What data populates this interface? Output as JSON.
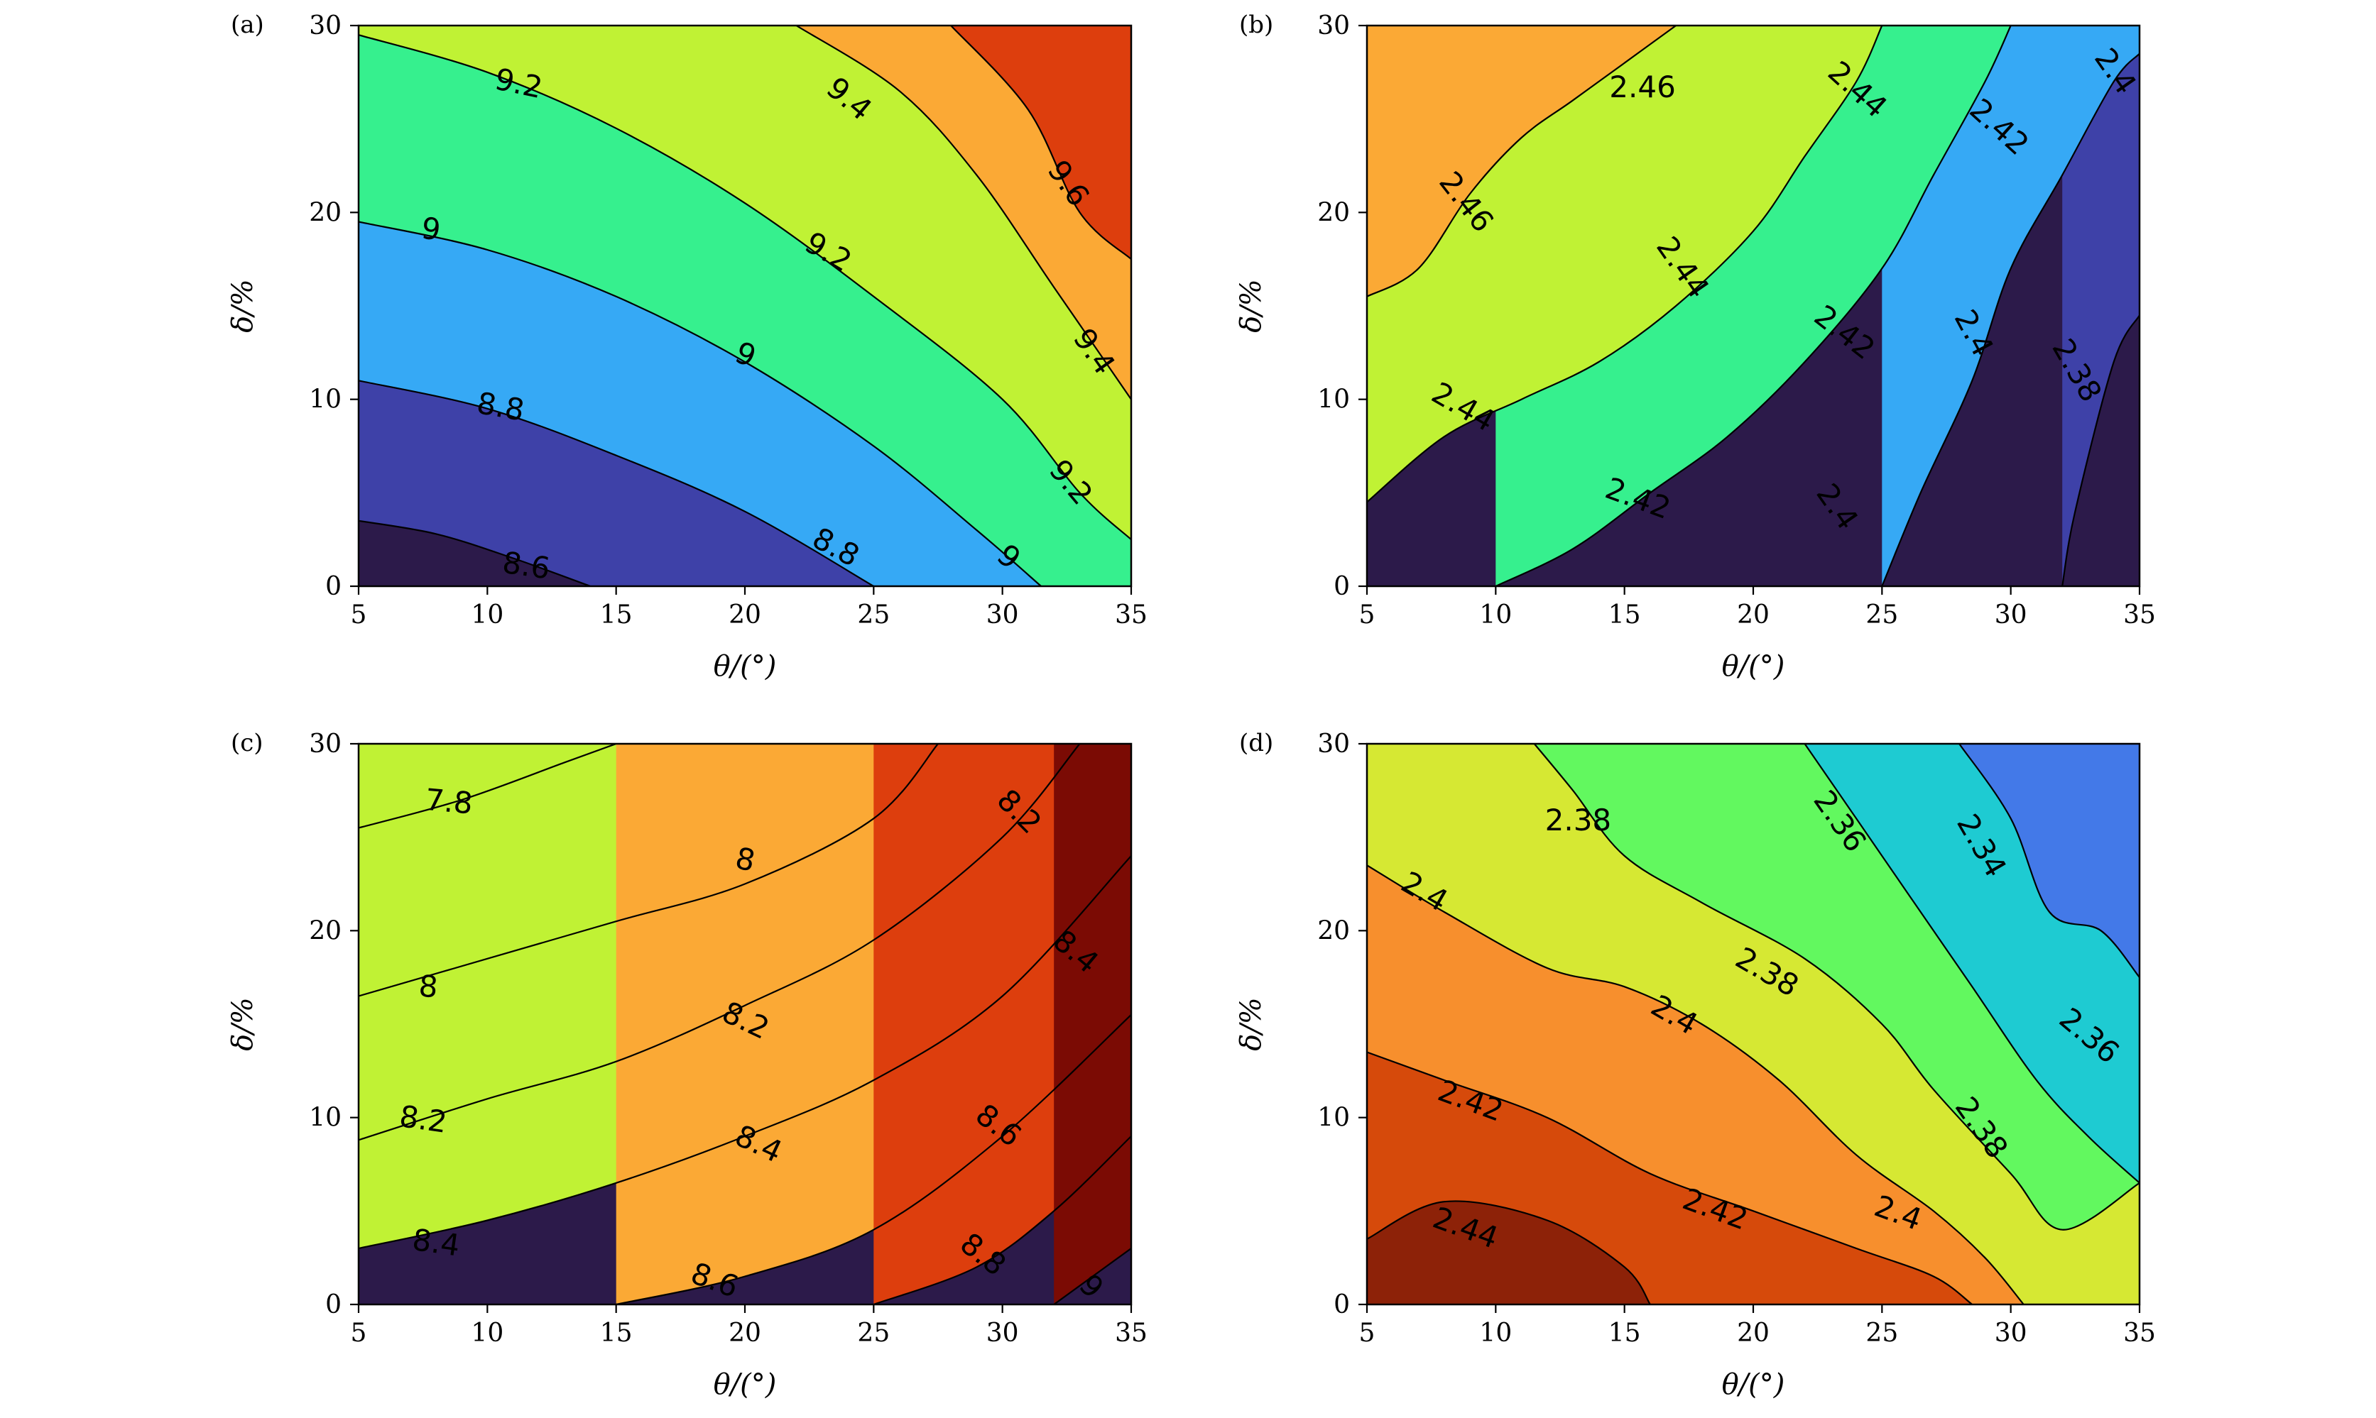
{
  "chart_data": [
    {
      "panel": "(a)",
      "type": "contour",
      "xlabel": "θ/(°)",
      "ylabel": "δ/%",
      "xlim": [
        5,
        35
      ],
      "ylim": [
        0,
        30
      ],
      "xticks": [
        5,
        10,
        15,
        20,
        25,
        30,
        35
      ],
      "yticks": [
        0,
        10,
        20,
        30
      ],
      "levels": [
        8.6,
        8.8,
        9,
        9.2,
        9.4,
        9.6
      ],
      "lines": [
        {
          "level": 8.6,
          "points": [
            [
              5,
              3.5
            ],
            [
              8,
              2.8
            ],
            [
              11,
              1.5
            ],
            [
              14,
              0
            ]
          ]
        },
        {
          "level": 8.8,
          "points": [
            [
              5,
              11
            ],
            [
              10,
              9.5
            ],
            [
              15,
              7
            ],
            [
              20,
              4
            ],
            [
              25,
              0
            ]
          ]
        },
        {
          "level": 9,
          "points": [
            [
              5,
              19.5
            ],
            [
              10,
              18
            ],
            [
              15,
              15.5
            ],
            [
              20,
              12
            ],
            [
              25,
              7.5
            ],
            [
              29,
              3
            ],
            [
              31.5,
              0
            ]
          ]
        },
        {
          "level": 9.2,
          "points": [
            [
              5,
              29.5
            ],
            [
              10,
              27.5
            ],
            [
              15,
              24.5
            ],
            [
              20,
              20.5
            ],
            [
              25,
              15.5
            ],
            [
              30,
              10
            ],
            [
              33,
              5
            ],
            [
              35,
              2.5
            ]
          ]
        },
        {
          "level": 9.4,
          "points": [
            [
              22,
              30
            ],
            [
              26,
              26.5
            ],
            [
              29,
              22
            ],
            [
              32,
              16
            ],
            [
              35,
              10
            ]
          ]
        },
        {
          "level": 9.6,
          "points": [
            [
              28,
              30
            ],
            [
              31,
              25.5
            ],
            [
              33,
              20
            ],
            [
              35,
              17.5
            ]
          ]
        }
      ],
      "labels": [
        {
          "text": "8.6",
          "x": 11.5,
          "y": 1.0,
          "angle": 8
        },
        {
          "text": "8.8",
          "x": 10.5,
          "y": 9.5,
          "angle": 10
        },
        {
          "text": "8.8",
          "x": 23.5,
          "y": 2.0,
          "angle": 28
        },
        {
          "text": "9",
          "x": 7.8,
          "y": 19.0,
          "angle": 8
        },
        {
          "text": "9",
          "x": 20.0,
          "y": 12.3,
          "angle": 22
        },
        {
          "text": "9",
          "x": 30.2,
          "y": 1.5,
          "angle": 40
        },
        {
          "text": "9.2",
          "x": 11.2,
          "y": 26.8,
          "angle": 12
        },
        {
          "text": "9.2",
          "x": 23.2,
          "y": 17.8,
          "angle": 30
        },
        {
          "text": "9.2",
          "x": 32.6,
          "y": 5.5,
          "angle": 50
        },
        {
          "text": "9.4",
          "x": 24.0,
          "y": 26.0,
          "angle": 40
        },
        {
          "text": "9.4",
          "x": 33.5,
          "y": 12.5,
          "angle": 55
        },
        {
          "text": "9.6",
          "x": 32.5,
          "y": 21.5,
          "angle": 55
        }
      ],
      "palette": [
        "#2c1a4a",
        "#3e41a8",
        "#36a9f5",
        "#36f08e",
        "#c0f234",
        "#fba935",
        "#dd3e0d",
        "#7b0b04"
      ]
    },
    {
      "panel": "(b)",
      "type": "contour",
      "xlabel": "θ/(°)",
      "ylabel": "δ/%",
      "xlim": [
        5,
        35
      ],
      "ylim": [
        0,
        30
      ],
      "xticks": [
        5,
        10,
        15,
        20,
        25,
        30,
        35
      ],
      "yticks": [
        0,
        10,
        20,
        30
      ],
      "levels": [
        2.38,
        2.4,
        2.42,
        2.44,
        2.46
      ],
      "lines": [
        {
          "level": 2.38,
          "points": [
            [
              32,
              0
            ],
            [
              32.5,
              4
            ],
            [
              34,
              12
            ],
            [
              35,
              14.5
            ]
          ]
        },
        {
          "level": 2.4,
          "points": [
            [
              25,
              0
            ],
            [
              26.5,
              5
            ],
            [
              28.5,
              11
            ],
            [
              30,
              17
            ],
            [
              32,
              22
            ],
            [
              34,
              27
            ],
            [
              35,
              28.5
            ]
          ]
        },
        {
          "level": 2.42,
          "points": [
            [
              10,
              0
            ],
            [
              13,
              2
            ],
            [
              16,
              5
            ],
            [
              19,
              8
            ],
            [
              22,
              12
            ],
            [
              25,
              17
            ],
            [
              27,
              22
            ],
            [
              29,
              27
            ],
            [
              30,
              30
            ]
          ]
        },
        {
          "level": 2.44,
          "points": [
            [
              5,
              4.5
            ],
            [
              8,
              8
            ],
            [
              11,
              10
            ],
            [
              14,
              12
            ],
            [
              17,
              15
            ],
            [
              20,
              19
            ],
            [
              22,
              23
            ],
            [
              24,
              27
            ],
            [
              25,
              30
            ]
          ]
        },
        {
          "level": 2.46,
          "points": [
            [
              5,
              15.5
            ],
            [
              7,
              17
            ],
            [
              9,
              21
            ],
            [
              11,
              24
            ],
            [
              13,
              26
            ],
            [
              15,
              28
            ],
            [
              17,
              30
            ]
          ]
        }
      ],
      "labels": [
        {
          "text": "2.38",
          "x": 32.5,
          "y": 11.5,
          "angle": 60
        },
        {
          "text": "2.4",
          "x": 23.2,
          "y": 4.2,
          "angle": 55
        },
        {
          "text": "2.4",
          "x": 28.5,
          "y": 13.5,
          "angle": 62
        },
        {
          "text": "2.4",
          "x": 34.0,
          "y": 27.5,
          "angle": 55
        },
        {
          "text": "2.42",
          "x": 15.5,
          "y": 4.6,
          "angle": 20
        },
        {
          "text": "2.42",
          "x": 23.5,
          "y": 13.5,
          "angle": 38
        },
        {
          "text": "2.42",
          "x": 29.5,
          "y": 24.5,
          "angle": 42
        },
        {
          "text": "2.44",
          "x": 8.7,
          "y": 9.5,
          "angle": 30
        },
        {
          "text": "2.44",
          "x": 17.2,
          "y": 17.0,
          "angle": 55
        },
        {
          "text": "2.44",
          "x": 24.0,
          "y": 26.5,
          "angle": 42
        },
        {
          "text": "2.46",
          "x": 8.8,
          "y": 20.5,
          "angle": 52
        },
        {
          "text": "2.46",
          "x": 15.7,
          "y": 26.6,
          "angle": 0
        }
      ],
      "palette": [
        "#2c1a4a",
        "#3e41a8",
        "#36a9f5",
        "#36f08e",
        "#c0f234",
        "#fba935",
        "#dd3e0d",
        "#7b0b04"
      ]
    },
    {
      "panel": "(c)",
      "type": "contour",
      "xlabel": "θ/(°)",
      "ylabel": "δ/%",
      "xlim": [
        5,
        35
      ],
      "ylim": [
        0,
        30
      ],
      "xticks": [
        5,
        10,
        15,
        20,
        25,
        30,
        35
      ],
      "yticks": [
        0,
        10,
        20,
        30
      ],
      "levels": [
        7.8,
        8,
        8.2,
        8.4,
        8.6,
        8.8,
        9
      ],
      "lines": [
        {
          "level": 7.8,
          "points": [
            [
              5,
              25.5
            ],
            [
              9,
              27
            ],
            [
              13,
              29
            ],
            [
              15,
              30
            ]
          ]
        },
        {
          "level": 8,
          "points": [
            [
              5,
              16.5
            ],
            [
              10,
              18.5
            ],
            [
              15,
              20.5
            ],
            [
              20,
              22.5
            ],
            [
              25,
              26
            ],
            [
              27.5,
              30
            ]
          ]
        },
        {
          "level": 8.2,
          "points": [
            [
              5,
              8.8
            ],
            [
              10,
              11
            ],
            [
              15,
              13
            ],
            [
              20,
              16
            ],
            [
              25,
              19.5
            ],
            [
              30,
              25
            ],
            [
              33,
              30
            ]
          ]
        },
        {
          "level": 8.4,
          "points": [
            [
              5,
              3
            ],
            [
              10,
              4.5
            ],
            [
              15,
              6.5
            ],
            [
              20,
              9
            ],
            [
              25,
              12
            ],
            [
              30,
              16.5
            ],
            [
              35,
              24
            ]
          ]
        },
        {
          "level": 8.6,
          "points": [
            [
              15,
              0
            ],
            [
              20,
              1.5
            ],
            [
              25,
              4
            ],
            [
              30,
              9
            ],
            [
              35,
              15.5
            ]
          ]
        },
        {
          "level": 8.8,
          "points": [
            [
              25,
              0
            ],
            [
              29,
              2
            ],
            [
              32,
              5
            ],
            [
              35,
              9
            ]
          ]
        },
        {
          "level": 9,
          "points": [
            [
              32,
              0
            ],
            [
              33.5,
              1.5
            ],
            [
              35,
              3
            ]
          ]
        }
      ],
      "labels": [
        {
          "text": "7.8",
          "x": 8.5,
          "y": 26.8,
          "angle": 5
        },
        {
          "text": "8",
          "x": 7.7,
          "y": 16.9,
          "angle": 5
        },
        {
          "text": "8",
          "x": 20.0,
          "y": 23.7,
          "angle": 12
        },
        {
          "text": "8.2",
          "x": 7.5,
          "y": 9.8,
          "angle": 8
        },
        {
          "text": "8.2",
          "x": 20.0,
          "y": 15.1,
          "angle": 25
        },
        {
          "text": "8.2",
          "x": 30.6,
          "y": 26.3,
          "angle": 45
        },
        {
          "text": "8.4",
          "x": 8.0,
          "y": 3.2,
          "angle": 8
        },
        {
          "text": "8.4",
          "x": 20.5,
          "y": 8.5,
          "angle": 25
        },
        {
          "text": "8.4",
          "x": 32.8,
          "y": 18.8,
          "angle": 40
        },
        {
          "text": "8.6",
          "x": 18.8,
          "y": 1.2,
          "angle": 20
        },
        {
          "text": "8.6",
          "x": 29.8,
          "y": 9.5,
          "angle": 38
        },
        {
          "text": "8.8",
          "x": 29.2,
          "y": 2.6,
          "angle": 38
        },
        {
          "text": "9",
          "x": 33.4,
          "y": 0.9,
          "angle": 45
        }
      ],
      "palette": [
        "#2c1a4a",
        "#3e41a8",
        "#36a9f5",
        "#36f08e",
        "#c0f234",
        "#fba935",
        "#dd3e0d",
        "#7b0b04"
      ]
    },
    {
      "panel": "(d)",
      "type": "contour",
      "xlabel": "θ/(°)",
      "ylabel": "δ/%",
      "xlim": [
        5,
        35
      ],
      "ylim": [
        0,
        30
      ],
      "xticks": [
        5,
        10,
        15,
        20,
        25,
        30,
        35
      ],
      "yticks": [
        0,
        10,
        20,
        30
      ],
      "levels": [
        2.34,
        2.36,
        2.38,
        2.4,
        2.42,
        2.44
      ],
      "lines": [
        {
          "level": 2.44,
          "points": [
            [
              5,
              3.5
            ],
            [
              8,
              5.5
            ],
            [
              12,
              4.5
            ],
            [
              15,
              2
            ],
            [
              16,
              0
            ]
          ]
        },
        {
          "level": 2.42,
          "points": [
            [
              5,
              13.5
            ],
            [
              8,
              12
            ],
            [
              12,
              10
            ],
            [
              16,
              7
            ],
            [
              20,
              5
            ],
            [
              24,
              3
            ],
            [
              27,
              1.5
            ],
            [
              28.5,
              0
            ]
          ]
        },
        {
          "level": 2.4,
          "points": [
            [
              5,
              23.5
            ],
            [
              8,
              21
            ],
            [
              12,
              18
            ],
            [
              15,
              17
            ],
            [
              18,
              15
            ],
            [
              21,
              12
            ],
            [
              24,
              8
            ],
            [
              27,
              5
            ],
            [
              29,
              2.5
            ],
            [
              30.5,
              0
            ]
          ]
        },
        {
          "level": 2.38,
          "points": [
            [
              11.5,
              30
            ],
            [
              13,
              27.5
            ],
            [
              15,
              24
            ],
            [
              18,
              21.5
            ],
            [
              22,
              18.5
            ],
            [
              25,
              15
            ],
            [
              27,
              11.5
            ],
            [
              30,
              7
            ],
            [
              32,
              4
            ],
            [
              35,
              6.5
            ]
          ]
        },
        {
          "level": 2.36,
          "points": [
            [
              22,
              30
            ],
            [
              24,
              26
            ],
            [
              26,
              22
            ],
            [
              28.5,
              17
            ],
            [
              31,
              12
            ],
            [
              33,
              9
            ],
            [
              35,
              6.5
            ]
          ]
        },
        {
          "level": 2.34,
          "points": [
            [
              28,
              30
            ],
            [
              30,
              26
            ],
            [
              31.5,
              21
            ],
            [
              33.5,
              20
            ],
            [
              35,
              17.5
            ]
          ]
        }
      ],
      "labels": [
        {
          "text": "2.34",
          "x": 28.8,
          "y": 24.5,
          "angle": 60
        },
        {
          "text": "2.36",
          "x": 23.3,
          "y": 25.8,
          "angle": 55
        },
        {
          "text": "2.36",
          "x": 33.0,
          "y": 14.3,
          "angle": 40
        },
        {
          "text": "2.38",
          "x": 13.2,
          "y": 25.8,
          "angle": 0
        },
        {
          "text": "2.38",
          "x": 20.5,
          "y": 17.7,
          "angle": 30
        },
        {
          "text": "2.38",
          "x": 28.8,
          "y": 9.4,
          "angle": 55
        },
        {
          "text": "2.4",
          "x": 7.2,
          "y": 22.0,
          "angle": 30
        },
        {
          "text": "2.4",
          "x": 16.9,
          "y": 15.4,
          "angle": 30
        },
        {
          "text": "2.4",
          "x": 25.6,
          "y": 4.8,
          "angle": 20
        },
        {
          "text": "2.42",
          "x": 9.0,
          "y": 10.8,
          "angle": 20
        },
        {
          "text": "2.42",
          "x": 18.5,
          "y": 5.0,
          "angle": 20
        },
        {
          "text": "2.44",
          "x": 8.8,
          "y": 4.0,
          "angle": 20
        }
      ],
      "palette": [
        "#8d2208",
        "#d64a0b",
        "#f78f2d",
        "#d6e833",
        "#62f85f",
        "#1ecbd2",
        "#4379e8",
        "#2d1a48"
      ]
    }
  ]
}
